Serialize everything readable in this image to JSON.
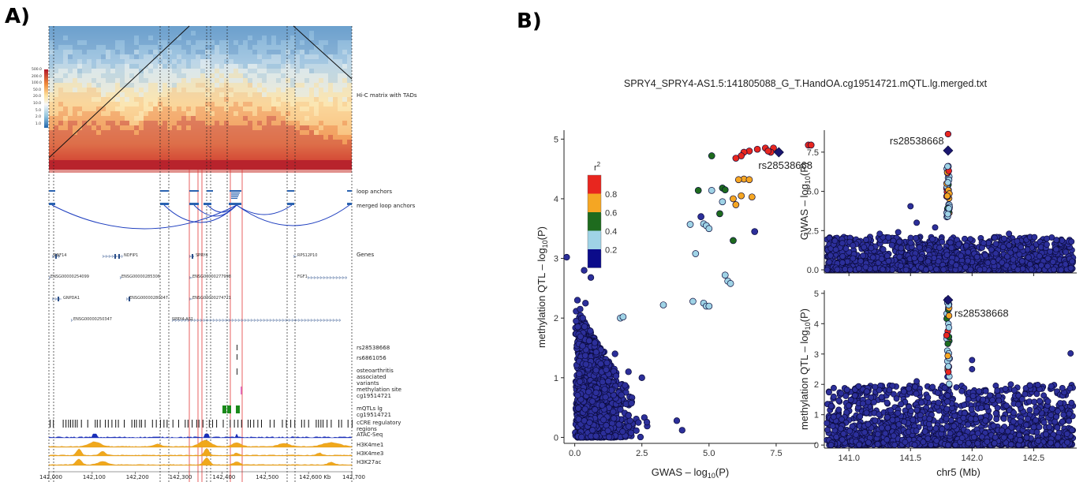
{
  "panel_a": {
    "label": "A)",
    "colorbar_ticks": [
      "500.0",
      "200.0",
      "100.0",
      "50.0",
      "20.0",
      "10.0",
      "5.0",
      "2.0",
      "1.0"
    ],
    "track_labels": {
      "hic": "Hi-C matrix with TADs",
      "loop_anchors": "loop anchors",
      "merged_loop_anchors": "merged loop anchors",
      "genes": "Genes",
      "snp1": "rs28538668",
      "snp2": "rs6861056",
      "oa": "osteoarthritis associated variants",
      "methyl": "methylation site cg19514721",
      "mqtl": "mQTLs lg cg19514721",
      "ccre": "cCRE regulatory regions",
      "atac": "ATAC-Seq",
      "h3k4me1": "H3K4me1",
      "h3k4me3": "H3K4me3",
      "h3k27ac": "H3K27ac"
    },
    "genes": [
      {
        "name": "RNF14",
        "x": 68,
        "y": 324
      },
      {
        "name": "NDFIP1",
        "x": 157,
        "y": 324
      },
      {
        "name": "SPRY4",
        "x": 248,
        "y": 324
      },
      {
        "name": "RPS12P10",
        "x": 377,
        "y": 324
      },
      {
        "name": "ENSG00000254099",
        "x": 64,
        "y": 351
      },
      {
        "name": "ENSG00000285306",
        "x": 154,
        "y": 351
      },
      {
        "name": "ENSG00000277998",
        "x": 244,
        "y": 351
      },
      {
        "name": "FGF1",
        "x": 377,
        "y": 351
      },
      {
        "name": "GNPDA1",
        "x": 80,
        "y": 378
      },
      {
        "name": "ENSG00000280047",
        "x": 164,
        "y": 378
      },
      {
        "name": "ENSG00000274721",
        "x": 244,
        "y": 378
      },
      {
        "name": "ENSG00000250347",
        "x": 93,
        "y": 405
      },
      {
        "name": "SPRY4-AS1",
        "x": 218,
        "y": 405
      }
    ],
    "x_ticks": [
      "142,000",
      "142,100",
      "142,200",
      "142,300",
      "142,400",
      "142,500",
      "142,600 Kb",
      "142,700"
    ],
    "x_tick_values_kb": [
      142000,
      142100,
      142200,
      142300,
      142400,
      142500,
      142600,
      142700
    ],
    "colors": {
      "loops": "#1f3fbf",
      "anchors": "#2b63b0",
      "atac": "#1a2fb8",
      "histone": "#f0a81c",
      "mqtl": "#1a8a1a",
      "methyl": "#e070d0",
      "red_lines": "#e23a3a"
    }
  },
  "panel_b": {
    "label": "B)",
    "title": "SPRY4_SPRY4-AS1.5:141805088_G_T.HandOA.cg19514721.mQTL.lg.merged.txt",
    "snp_label": "rs28538668",
    "legend_title": "r",
    "legend_title_sup": "2",
    "legend_ticks": [
      "0.8",
      "0.6",
      "0.4",
      "0.2"
    ],
    "legend_colors": [
      "#e8261f",
      "#f5a623",
      "#1e6b1e",
      "#9fd3e6",
      "#0b0b8a"
    ],
    "left_plot": {
      "xlabel": "GWAS – log",
      "xlabel_sub": "10",
      "xlabel_end": "(P)",
      "ylabel": "methylation QTL – log",
      "ylabel_sub": "10",
      "ylabel_end": "(P)",
      "x_ticks": [
        "0.0",
        "2.5",
        "5.0",
        "7.5"
      ],
      "y_ticks": [
        "0",
        "1",
        "2",
        "3",
        "4",
        "5"
      ]
    },
    "top_right_plot": {
      "ylabel": "GWAS – log",
      "ylabel_sub": "10",
      "ylabel_end": "(P)",
      "y_ticks": [
        "0.0",
        "2.5",
        "5.0",
        "7.5"
      ]
    },
    "bottom_right_plot": {
      "ylabel": "methylation QTL – log",
      "ylabel_sub": "10",
      "ylabel_end": "(P)",
      "xlabel": "chr5 (Mb)",
      "x_ticks": [
        "141.0",
        "141.5",
        "142.0",
        "142.5"
      ],
      "y_ticks": [
        "0",
        "1",
        "2",
        "3",
        "4",
        "5"
      ]
    }
  },
  "chart_data": [
    {
      "type": "scatter",
      "title": "SPRY4_SPRY4-AS1.5:141805088_G_T.HandOA.cg19514721.mQTL.lg.merged.txt",
      "xlabel": "GWAS –log10(P)",
      "ylabel": "methylation QTL –log10(P)",
      "xlim": [
        -0.4,
        9.0
      ],
      "ylim": [
        -0.1,
        5.15
      ],
      "lead_snp": {
        "name": "rs28538668",
        "x": 7.6,
        "y": 4.78
      },
      "highlighted_points": [
        {
          "x": 8.7,
          "y": 4.9,
          "r2": "red"
        },
        {
          "x": 8.8,
          "y": 4.9,
          "r2": "red"
        },
        {
          "x": 7.4,
          "y": 4.85,
          "r2": "red"
        },
        {
          "x": 7.1,
          "y": 4.85,
          "r2": "red"
        },
        {
          "x": 6.8,
          "y": 4.83,
          "r2": "red"
        },
        {
          "x": 6.5,
          "y": 4.8,
          "r2": "red"
        },
        {
          "x": 6.3,
          "y": 4.78,
          "r2": "red"
        },
        {
          "x": 6.2,
          "y": 4.72,
          "r2": "red"
        },
        {
          "x": 6.0,
          "y": 4.68,
          "r2": "red"
        },
        {
          "x": 7.3,
          "y": 4.78,
          "r2": "red"
        },
        {
          "x": 7.2,
          "y": 4.8,
          "r2": "red"
        },
        {
          "x": 5.1,
          "y": 4.72,
          "r2": "green"
        },
        {
          "x": 6.3,
          "y": 4.33,
          "r2": "orange"
        },
        {
          "x": 6.5,
          "y": 4.32,
          "r2": "orange"
        },
        {
          "x": 6.1,
          "y": 4.32,
          "r2": "orange"
        },
        {
          "x": 5.5,
          "y": 4.18,
          "r2": "green"
        },
        {
          "x": 5.6,
          "y": 4.15,
          "r2": "green"
        },
        {
          "x": 4.6,
          "y": 4.14,
          "r2": "green"
        },
        {
          "x": 5.1,
          "y": 4.14,
          "r2": "lightblue"
        },
        {
          "x": 6.6,
          "y": 4.03,
          "r2": "orange"
        },
        {
          "x": 6.2,
          "y": 4.05,
          "r2": "orange"
        },
        {
          "x": 5.9,
          "y": 4.0,
          "r2": "orange"
        },
        {
          "x": 6.0,
          "y": 3.9,
          "r2": "orange"
        },
        {
          "x": 5.5,
          "y": 3.95,
          "r2": "lightblue"
        },
        {
          "x": 5.4,
          "y": 3.75,
          "r2": "green"
        },
        {
          "x": 4.7,
          "y": 3.7,
          "r2": "navy"
        },
        {
          "x": 4.8,
          "y": 3.58,
          "r2": "lightblue"
        },
        {
          "x": 4.9,
          "y": 3.55,
          "r2": "lightblue"
        },
        {
          "x": 4.3,
          "y": 3.57,
          "r2": "lightblue"
        },
        {
          "x": 5.0,
          "y": 3.5,
          "r2": "lightblue"
        },
        {
          "x": 6.7,
          "y": 3.45,
          "r2": "navy"
        },
        {
          "x": 5.9,
          "y": 3.3,
          "r2": "green"
        },
        {
          "x": 4.5,
          "y": 3.08,
          "r2": "lightblue"
        },
        {
          "x": 5.6,
          "y": 2.72,
          "r2": "lightblue"
        },
        {
          "x": 5.7,
          "y": 2.62,
          "r2": "lightblue"
        },
        {
          "x": 5.8,
          "y": 2.58,
          "r2": "lightblue"
        },
        {
          "x": 4.4,
          "y": 2.28,
          "r2": "lightblue"
        },
        {
          "x": 4.8,
          "y": 2.25,
          "r2": "lightblue"
        },
        {
          "x": 4.9,
          "y": 2.2,
          "r2": "lightblue"
        },
        {
          "x": 5.0,
          "y": 2.2,
          "r2": "lightblue"
        },
        {
          "x": 3.3,
          "y": 2.22,
          "r2": "lightblue"
        },
        {
          "x": 1.7,
          "y": 2.0,
          "r2": "lightblue"
        },
        {
          "x": 1.8,
          "y": 2.02,
          "r2": "lightblue"
        }
      ]
    },
    {
      "type": "scatter",
      "ylabel": "GWAS –log10(P)",
      "xlim": [
        140.8,
        142.85
      ],
      "ylim": [
        -0.2,
        8.9
      ],
      "lead_snp": {
        "name": "rs28538668",
        "x": 141.805,
        "y": 7.6
      },
      "y_ticks": [
        0.0,
        2.5,
        5.0,
        7.5
      ]
    },
    {
      "type": "scatter",
      "ylabel": "methylation QTL –log10(P)",
      "xlabel": "chr5 (Mb)",
      "xlim": [
        140.8,
        142.85
      ],
      "ylim": [
        -0.1,
        5.1
      ],
      "lead_snp": {
        "name": "rs28538668",
        "x": 141.805,
        "y": 4.78
      },
      "x_ticks": [
        141.0,
        141.5,
        142.0,
        142.5
      ],
      "y_ticks": [
        0,
        1,
        2,
        3,
        4,
        5
      ]
    }
  ]
}
